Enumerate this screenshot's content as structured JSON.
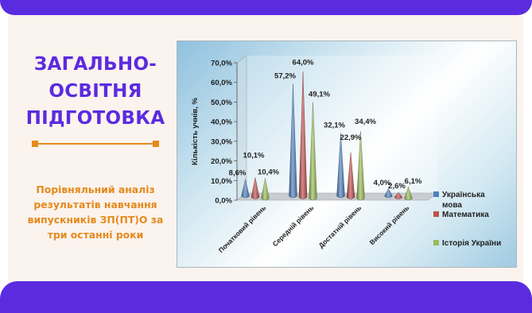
{
  "slide": {
    "title_lines": [
      "ЗАГАЛЬНО-",
      "ОСВІТНЯ",
      "ПІДГОТОВКА"
    ],
    "subtitle_lines": [
      "Порівняльний аналіз",
      "результатів навчання",
      "випускників ЗП(ПТ)О за",
      "три останні роки"
    ],
    "colors": {
      "band": "#5b2be0",
      "title": "#5b2be0",
      "accent": "#e58a1c",
      "background": "#fbf3ee"
    }
  },
  "chart_data": {
    "type": "bar",
    "style": "3d-cones",
    "categories": [
      "Початковий рівень",
      "Середній рівень",
      "Достатній рівень",
      "Високий рівень"
    ],
    "series": [
      {
        "name": "Українська мова",
        "color": "#4f81bd",
        "values": [
          8.6,
          57.2,
          32.1,
          4.0
        ]
      },
      {
        "name": "Математика",
        "color": "#c0504d",
        "values": [
          10.1,
          64.0,
          22.9,
          2.6
        ]
      },
      {
        "name": "Історія України",
        "color": "#9bbb59",
        "values": [
          10.4,
          49.1,
          34.4,
          6.1
        ]
      }
    ],
    "data_labels": [
      [
        "8,6%",
        "57,2%",
        "32,1%",
        "4,0%"
      ],
      [
        "10,1%",
        "64,0%",
        "22,9%",
        "2,6%"
      ],
      [
        "10,4%",
        "49,1%",
        "34,4%",
        "6,1%"
      ]
    ],
    "ylabel": "Кількість учнів, %",
    "xlabel": "",
    "ylim": [
      0,
      70
    ],
    "yticks": [
      0,
      10,
      20,
      30,
      40,
      50,
      60,
      70
    ],
    "ytick_labels": [
      "0,0%",
      "10,0%",
      "20,0%",
      "30,0%",
      "40,0%",
      "50,0%",
      "60,0%",
      "70,0%"
    ],
    "legend": {
      "position": "right",
      "entries": [
        {
          "lines": [
            "Українська",
            "мова"
          ]
        },
        {
          "lines": [
            "Математика"
          ]
        },
        {
          "lines": [
            "Історія України"
          ]
        }
      ]
    },
    "grid": false
  }
}
